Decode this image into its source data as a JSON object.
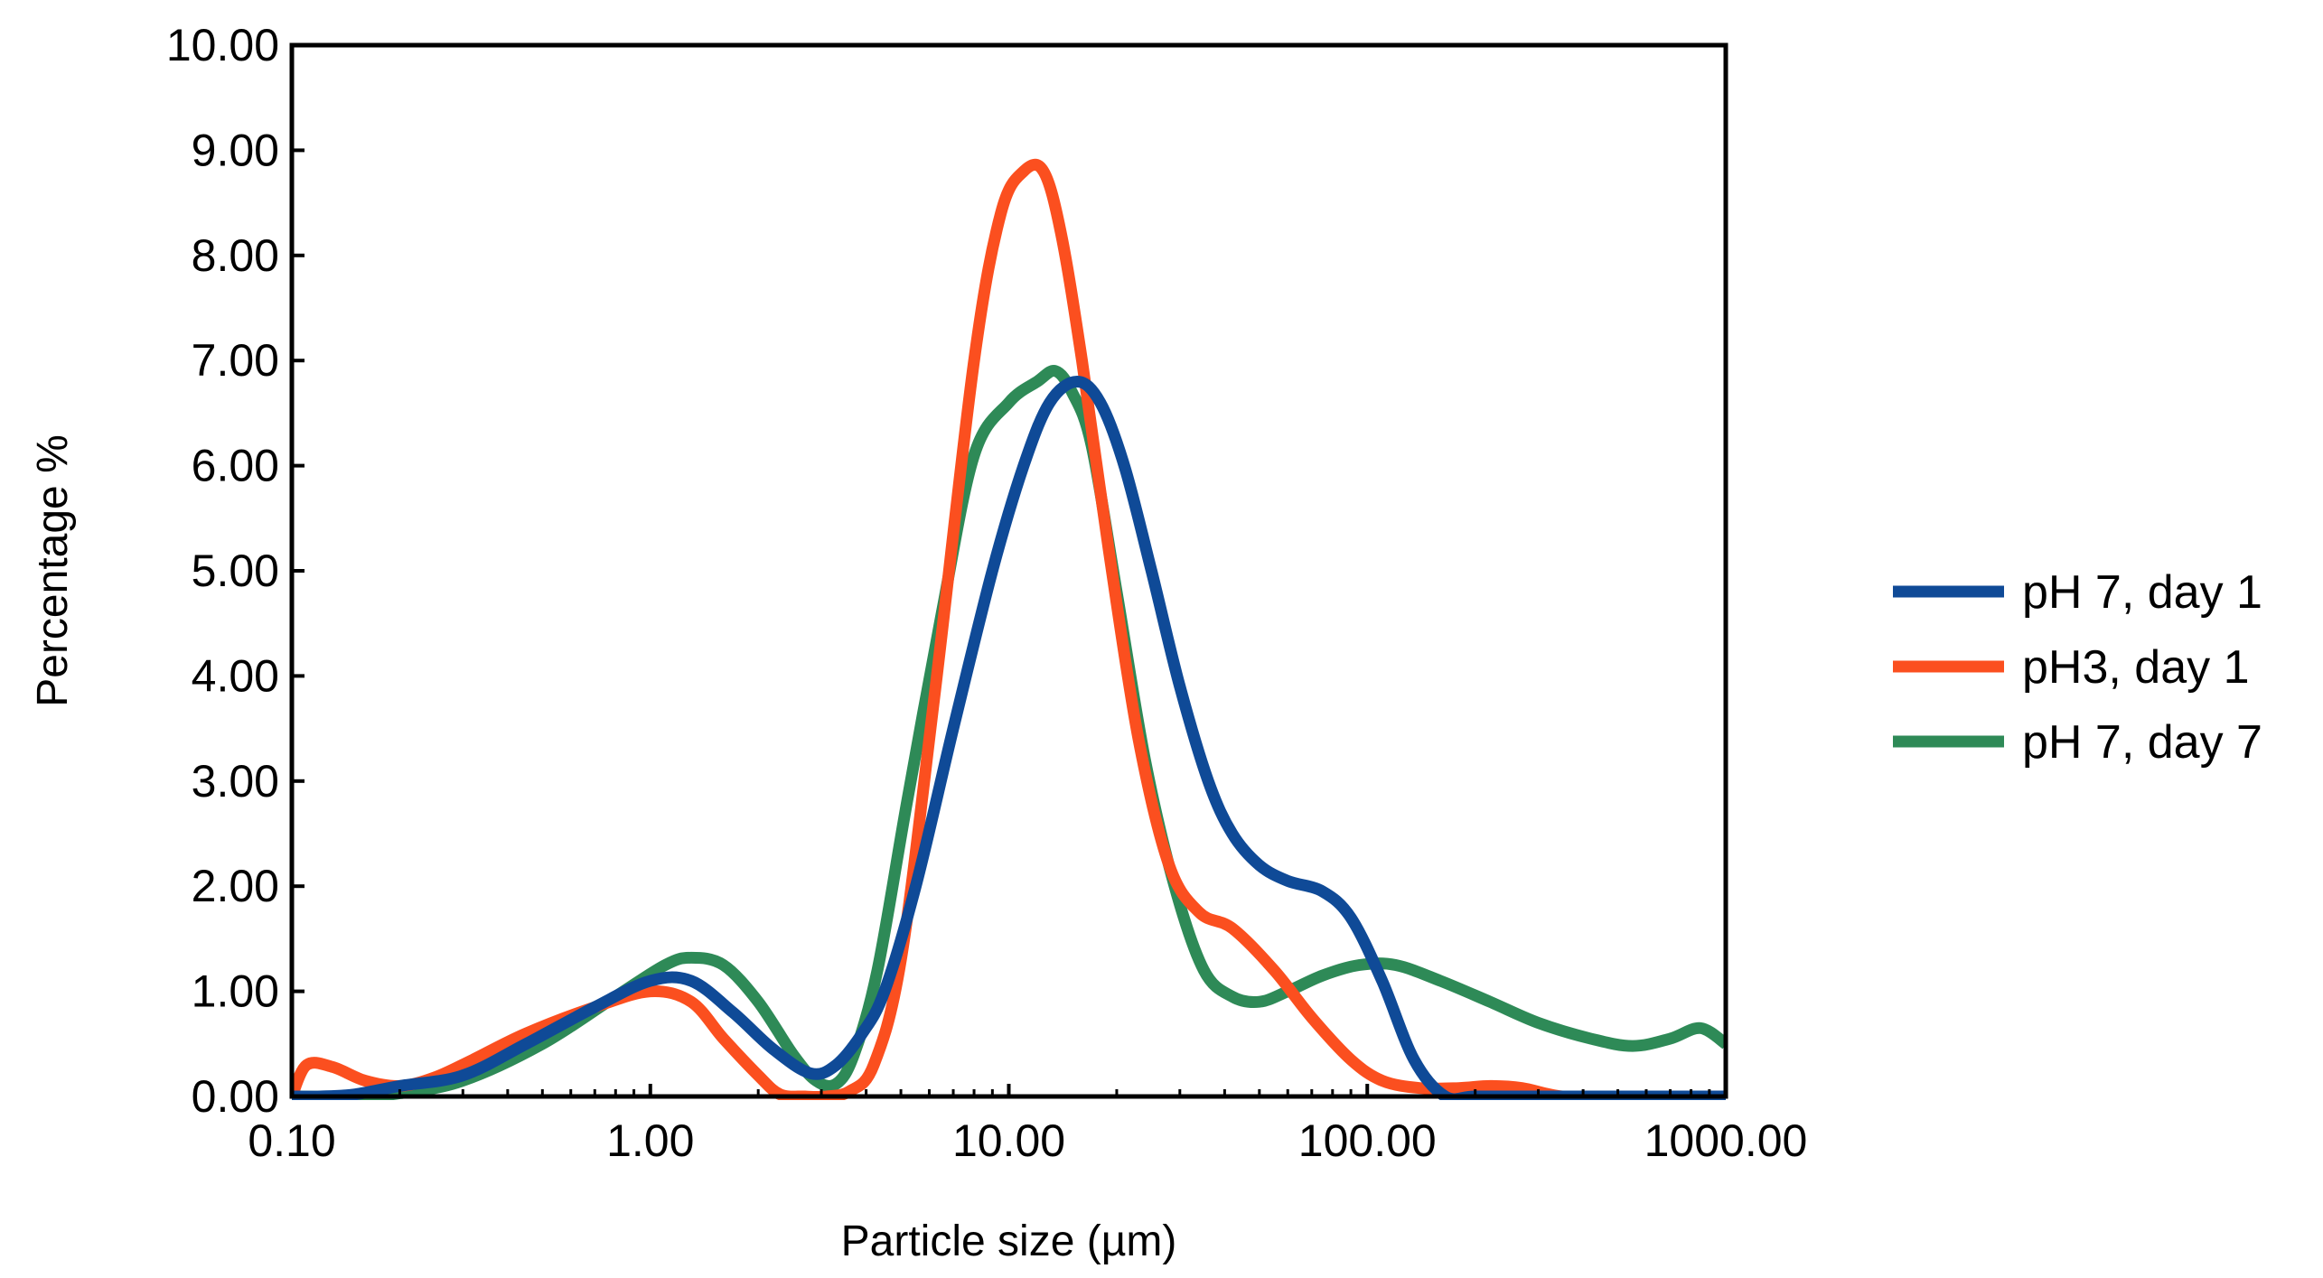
{
  "chart_data": {
    "type": "line",
    "title": "",
    "xlabel": "Particle size (µm)",
    "ylabel": "Percentage %",
    "xscale": "log",
    "xlim": [
      0.1,
      1000
    ],
    "ylim": [
      0,
      10
    ],
    "grid": false,
    "legend_position": "right",
    "x_ticks": [
      0.1,
      1,
      10,
      100,
      1000
    ],
    "x_tick_labels": [
      "0.10",
      "1.00",
      "10.00",
      "100.00",
      "1000.00"
    ],
    "y_ticks": [
      0,
      1,
      2,
      3,
      4,
      5,
      6,
      7,
      8,
      9,
      10
    ],
    "y_tick_labels": [
      "0.00",
      "1.00",
      "2.00",
      "3.00",
      "4.00",
      "5.00",
      "6.00",
      "7.00",
      "8.00",
      "9.00",
      "10.00"
    ],
    "series": [
      {
        "name": "pH 7, day 1",
        "color": "#0f4a97",
        "x": [
          0.1,
          0.12,
          0.15,
          0.2,
          0.3,
          0.45,
          0.7,
          1.0,
          1.3,
          1.7,
          2.2,
          2.8,
          3.3,
          3.9,
          4.5,
          5.5,
          7,
          9,
          11,
          13,
          15.5,
          18,
          21,
          25,
          30,
          36,
          42,
          50,
          60,
          75,
          90,
          110,
          135,
          165,
          200,
          300,
          500,
          1000
        ],
        "y": [
          0.0,
          0.0,
          0.02,
          0.1,
          0.2,
          0.5,
          0.85,
          1.1,
          1.1,
          0.8,
          0.45,
          0.22,
          0.3,
          0.6,
          1.0,
          2.0,
          3.5,
          5.0,
          6.0,
          6.6,
          6.8,
          6.6,
          6.0,
          5.0,
          3.9,
          3.0,
          2.5,
          2.2,
          2.05,
          1.95,
          1.7,
          1.1,
          0.35,
          0.0,
          0.0,
          0.0,
          0.0,
          0.0
        ]
      },
      {
        "name": "pH3, day 1",
        "color": "#fb4f1f",
        "x": [
          0.1,
          0.11,
          0.13,
          0.16,
          0.2,
          0.25,
          0.32,
          0.45,
          0.7,
          1.0,
          1.3,
          1.6,
          2.0,
          2.3,
          2.7,
          3.1,
          3.6,
          4.2,
          5.0,
          6.2,
          8,
          9.5,
          11,
          12.5,
          14,
          16,
          19,
          23,
          28,
          34,
          42,
          55,
          70,
          90,
          110,
          140,
          180,
          220,
          270,
          350,
          500,
          1000
        ],
        "y": [
          0.0,
          0.3,
          0.28,
          0.15,
          0.1,
          0.18,
          0.35,
          0.6,
          0.85,
          1.0,
          0.9,
          0.55,
          0.2,
          0.02,
          0.0,
          0.0,
          0.05,
          0.3,
          1.3,
          3.8,
          7.0,
          8.4,
          8.8,
          8.8,
          8.2,
          7.0,
          5.2,
          3.4,
          2.2,
          1.75,
          1.6,
          1.2,
          0.75,
          0.35,
          0.15,
          0.08,
          0.08,
          0.1,
          0.08,
          0.0,
          0.0,
          0.0
        ]
      },
      {
        "name": "pH 7, day 7",
        "color": "#2e8a57",
        "x": [
          0.1,
          0.15,
          0.2,
          0.3,
          0.5,
          0.8,
          1.1,
          1.3,
          1.6,
          2.0,
          2.5,
          2.9,
          3.3,
          3.7,
          4.3,
          5.2,
          6.5,
          8,
          10,
          12,
          13.5,
          15,
          17,
          20,
          24,
          29,
          35,
          42,
          50,
          60,
          75,
          95,
          120,
          160,
          220,
          300,
          420,
          550,
          700,
          850,
          1000
        ],
        "y": [
          0.0,
          0.0,
          0.03,
          0.15,
          0.5,
          0.95,
          1.25,
          1.32,
          1.25,
          0.9,
          0.4,
          0.15,
          0.12,
          0.4,
          1.2,
          2.8,
          4.6,
          6.1,
          6.6,
          6.8,
          6.9,
          6.7,
          6.2,
          4.8,
          3.2,
          2.0,
          1.2,
          0.95,
          0.9,
          1.0,
          1.15,
          1.25,
          1.25,
          1.1,
          0.9,
          0.7,
          0.55,
          0.48,
          0.55,
          0.65,
          0.5
        ]
      }
    ]
  }
}
